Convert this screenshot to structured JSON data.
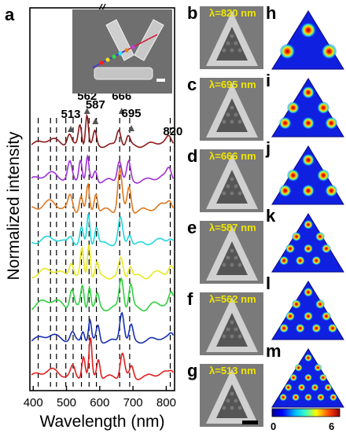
{
  "chart_data": {
    "type": "line",
    "panel_label": "a",
    "xlabel": "Wavelength (nm)",
    "ylabel": "Normalized intensity",
    "xlim": [
      390,
      825
    ],
    "xticks": [
      400,
      500,
      600,
      700,
      800
    ],
    "xtick_labels": [
      "400",
      "500",
      "600",
      "700",
      "800"
    ],
    "peak_labels": [
      {
        "text": "513",
        "x": 513
      },
      {
        "text": "562",
        "x": 562
      },
      {
        "text": "587",
        "x": 587
      },
      {
        "text": "666",
        "x": 666
      },
      {
        "text": "695",
        "x": 695
      },
      {
        "text": "820",
        "x": 820
      }
    ],
    "dashed_lines_x": [
      415,
      452,
      470,
      498,
      520,
      545,
      568,
      590,
      660,
      690,
      812
    ],
    "series": [
      {
        "color": "#8b1a1a"
      },
      {
        "color": "#a030d8"
      },
      {
        "color": "#e07820"
      },
      {
        "color": "#20d8e0"
      },
      {
        "color": "#e8e820"
      },
      {
        "color": "#30d040"
      },
      {
        "color": "#1830b0"
      },
      {
        "color": "#e02020"
      }
    ]
  },
  "sem_panels": [
    {
      "letter": "b",
      "lambda": "λ=820 nm"
    },
    {
      "letter": "c",
      "lambda": "λ=695 nm"
    },
    {
      "letter": "d",
      "lambda": "λ=666 nm"
    },
    {
      "letter": "e",
      "lambda": "λ=587 nm"
    },
    {
      "letter": "f",
      "lambda": "λ=562 nm"
    },
    {
      "letter": "g",
      "lambda": "λ=513 nm"
    }
  ],
  "sim_panels": [
    {
      "letter": "h"
    },
    {
      "letter": "i"
    },
    {
      "letter": "j"
    },
    {
      "letter": "k"
    },
    {
      "letter": "l"
    },
    {
      "letter": "m"
    }
  ],
  "colorbar": {
    "min_label": "0",
    "max_label": "6"
  }
}
